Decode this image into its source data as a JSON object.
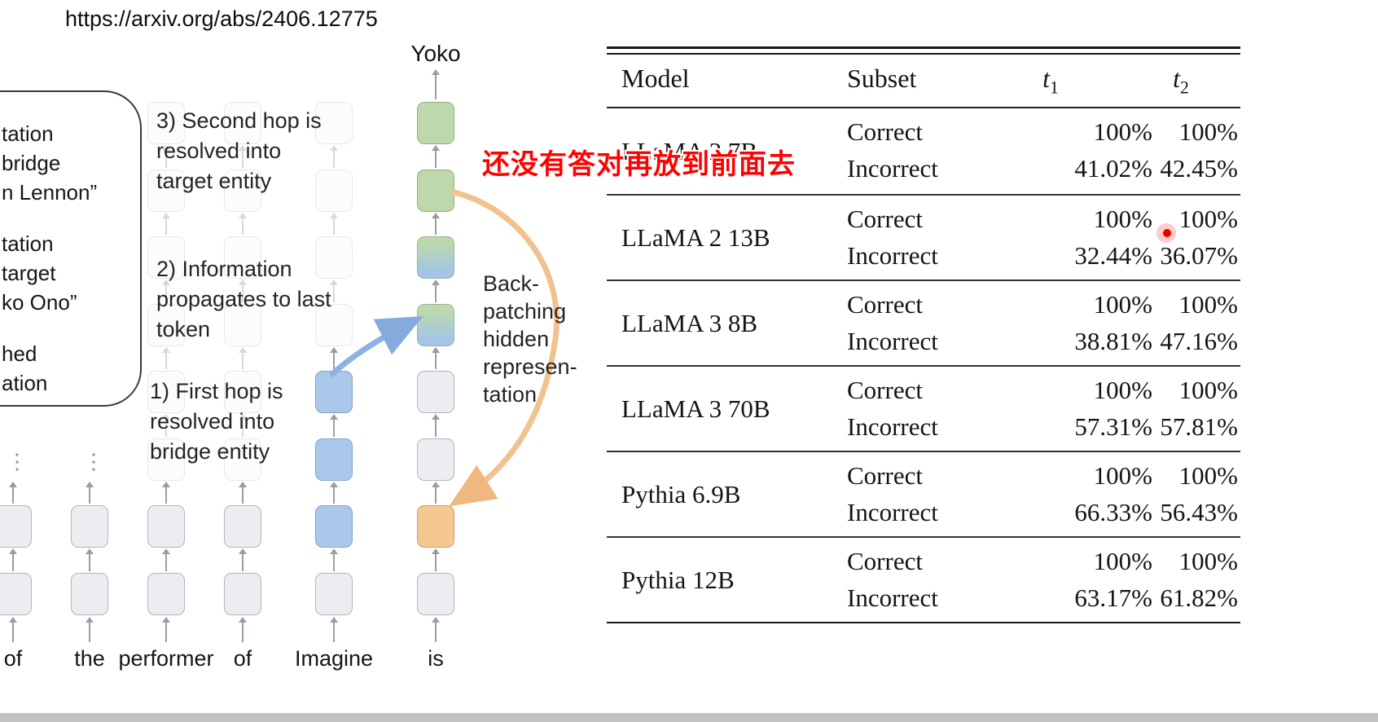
{
  "page": {
    "url_caption": "https://arxiv.org/abs/2406.12775"
  },
  "diagram": {
    "output_label": "Yoko",
    "steps": {
      "step3": "3) Second hop is\nresolved into\ntarget entity",
      "step2": "2) Information\npropagates to last\ntoken",
      "step1": "1) First hop is\nresolved into\nbridge entity"
    },
    "backpatching_label": "Back-\npatching\nhidden\nrepresen-\ntation",
    "legend_clipped_lines": [
      "tation",
      "bridge",
      "n Lennon”",
      "",
      "tation",
      "target",
      "ko Ono”",
      "",
      "hed",
      "ation"
    ],
    "grid": {
      "columns": [
        {
          "token": "of",
          "cells": [
            "hidden",
            "hidden",
            "hidden",
            "hidden",
            "hidden",
            "dots",
            "gray",
            "gray"
          ]
        },
        {
          "token": "the",
          "cells": [
            "hidden",
            "hidden",
            "hidden",
            "hidden",
            "hidden",
            "dots",
            "gray",
            "gray"
          ]
        },
        {
          "token": "performer",
          "cells": [
            "faint",
            "faint",
            "faint",
            "faint",
            "faint",
            "faint",
            "gray",
            "gray"
          ]
        },
        {
          "token": "of",
          "cells": [
            "faint",
            "faint",
            "faint",
            "faint",
            "faint",
            "faint",
            "gray",
            "gray"
          ]
        },
        {
          "token": "Imagine",
          "cells": [
            "faint",
            "faint",
            "faint",
            "faint",
            "blue",
            "blue",
            "blue",
            "gray"
          ]
        },
        {
          "token": "is",
          "cells": [
            "green",
            "green",
            "grad",
            "grad",
            "gray",
            "gray",
            "orange",
            "gray"
          ]
        }
      ]
    },
    "colors": {
      "green_box": "#bdd9ab",
      "blue_box": "#a9c8ea",
      "orange_box": "#f5c893",
      "gray_box": "#ededf1",
      "orange_arrow": "#f2c28e",
      "blue_arrow": "#8cb2e2"
    }
  },
  "overlay": {
    "red_note": "还没有答对再放到前面去",
    "red_note_color": "#fe0202",
    "laser_dot_color": "#e60000"
  },
  "table": {
    "headers": {
      "model": "Model",
      "subset": "Subset",
      "t_symbol": "t",
      "t1_sub": "1",
      "t2_sub": "2"
    },
    "rows": [
      {
        "model": "LLaMA 2 7B",
        "subset": [
          "Correct",
          "Incorrect"
        ],
        "t1": [
          "100%",
          "41.02%"
        ],
        "t2": [
          "100%",
          "42.45%"
        ]
      },
      {
        "model": "LLaMA 2 13B",
        "subset": [
          "Correct",
          "Incorrect"
        ],
        "t1": [
          "100%",
          "32.44%"
        ],
        "t2": [
          "100%",
          "36.07%"
        ]
      },
      {
        "model": "LLaMA 3 8B",
        "subset": [
          "Correct",
          "Incorrect"
        ],
        "t1": [
          "100%",
          "38.81%"
        ],
        "t2": [
          "100%",
          "47.16%"
        ]
      },
      {
        "model": "LLaMA 3 70B",
        "subset": [
          "Correct",
          "Incorrect"
        ],
        "t1": [
          "100%",
          "57.31%"
        ],
        "t2": [
          "100%",
          "57.81%"
        ]
      },
      {
        "model": "Pythia 6.9B",
        "subset": [
          "Correct",
          "Incorrect"
        ],
        "t1": [
          "100%",
          "66.33%"
        ],
        "t2": [
          "100%",
          "56.43%"
        ]
      },
      {
        "model": "Pythia 12B",
        "subset": [
          "Correct",
          "Incorrect"
        ],
        "t1": [
          "100%",
          "63.17%"
        ],
        "t2": [
          "100%",
          "61.82%"
        ]
      }
    ]
  },
  "chart_data": {
    "type": "table",
    "columns": [
      "Model",
      "Subset",
      "t1",
      "t2"
    ],
    "rows": [
      [
        "LLaMA 2 7B",
        "Correct",
        "100%",
        "100%"
      ],
      [
        "LLaMA 2 7B",
        "Incorrect",
        "41.02%",
        "42.45%"
      ],
      [
        "LLaMA 2 13B",
        "Correct",
        "100%",
        "100%"
      ],
      [
        "LLaMA 2 13B",
        "Incorrect",
        "32.44%",
        "36.07%"
      ],
      [
        "LLaMA 3 8B",
        "Correct",
        "100%",
        "100%"
      ],
      [
        "LLaMA 3 8B",
        "Incorrect",
        "38.81%",
        "47.16%"
      ],
      [
        "LLaMA 3 70B",
        "Correct",
        "100%",
        "100%"
      ],
      [
        "LLaMA 3 70B",
        "Incorrect",
        "57.31%",
        "57.81%"
      ],
      [
        "Pythia 6.9B",
        "Correct",
        "100%",
        "100%"
      ],
      [
        "Pythia 6.9B",
        "Incorrect",
        "66.33%",
        "56.43%"
      ],
      [
        "Pythia 12B",
        "Correct",
        "100%",
        "100%"
      ],
      [
        "Pythia 12B",
        "Incorrect",
        "63.17%",
        "61.82%"
      ]
    ]
  }
}
